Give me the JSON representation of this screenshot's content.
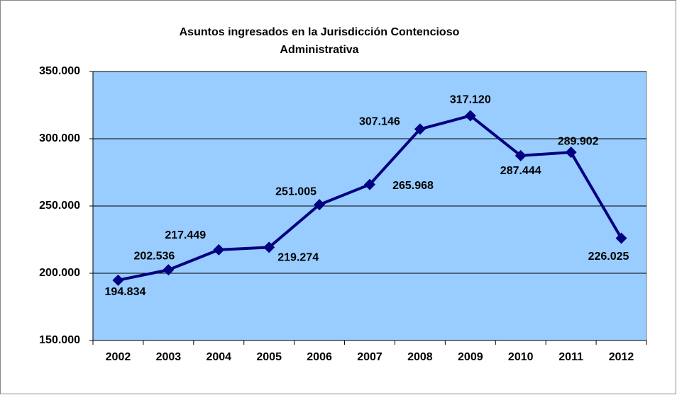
{
  "chart_data": {
    "type": "line",
    "title_lines": [
      "Asuntos ingresados en la Jurisdicción Contencioso",
      "Administrativa"
    ],
    "categories": [
      "2002",
      "2003",
      "2004",
      "2005",
      "2006",
      "2007",
      "2008",
      "2009",
      "2010",
      "2011",
      "2012"
    ],
    "series": [
      {
        "color": "#000080",
        "values": [
          194834,
          202536,
          217449,
          219274,
          251005,
          265968,
          307146,
          317120,
          287444,
          289902,
          226025
        ],
        "value_labels": [
          "194.834",
          "202.536",
          "217.449",
          "219.274",
          "251.005",
          "265.968",
          "307.146",
          "317.120",
          "287.444",
          "289.902",
          "226.025"
        ]
      }
    ],
    "ylim": [
      150000,
      350000
    ],
    "yticks": [
      {
        "value": 150000,
        "label": "150.000"
      },
      {
        "value": 200000,
        "label": "200.000"
      },
      {
        "value": 250000,
        "label": "250.000"
      },
      {
        "value": 300000,
        "label": "300.000"
      },
      {
        "value": 350000,
        "label": "350.000"
      }
    ],
    "grid": true,
    "plot_color": "#99ccff"
  }
}
